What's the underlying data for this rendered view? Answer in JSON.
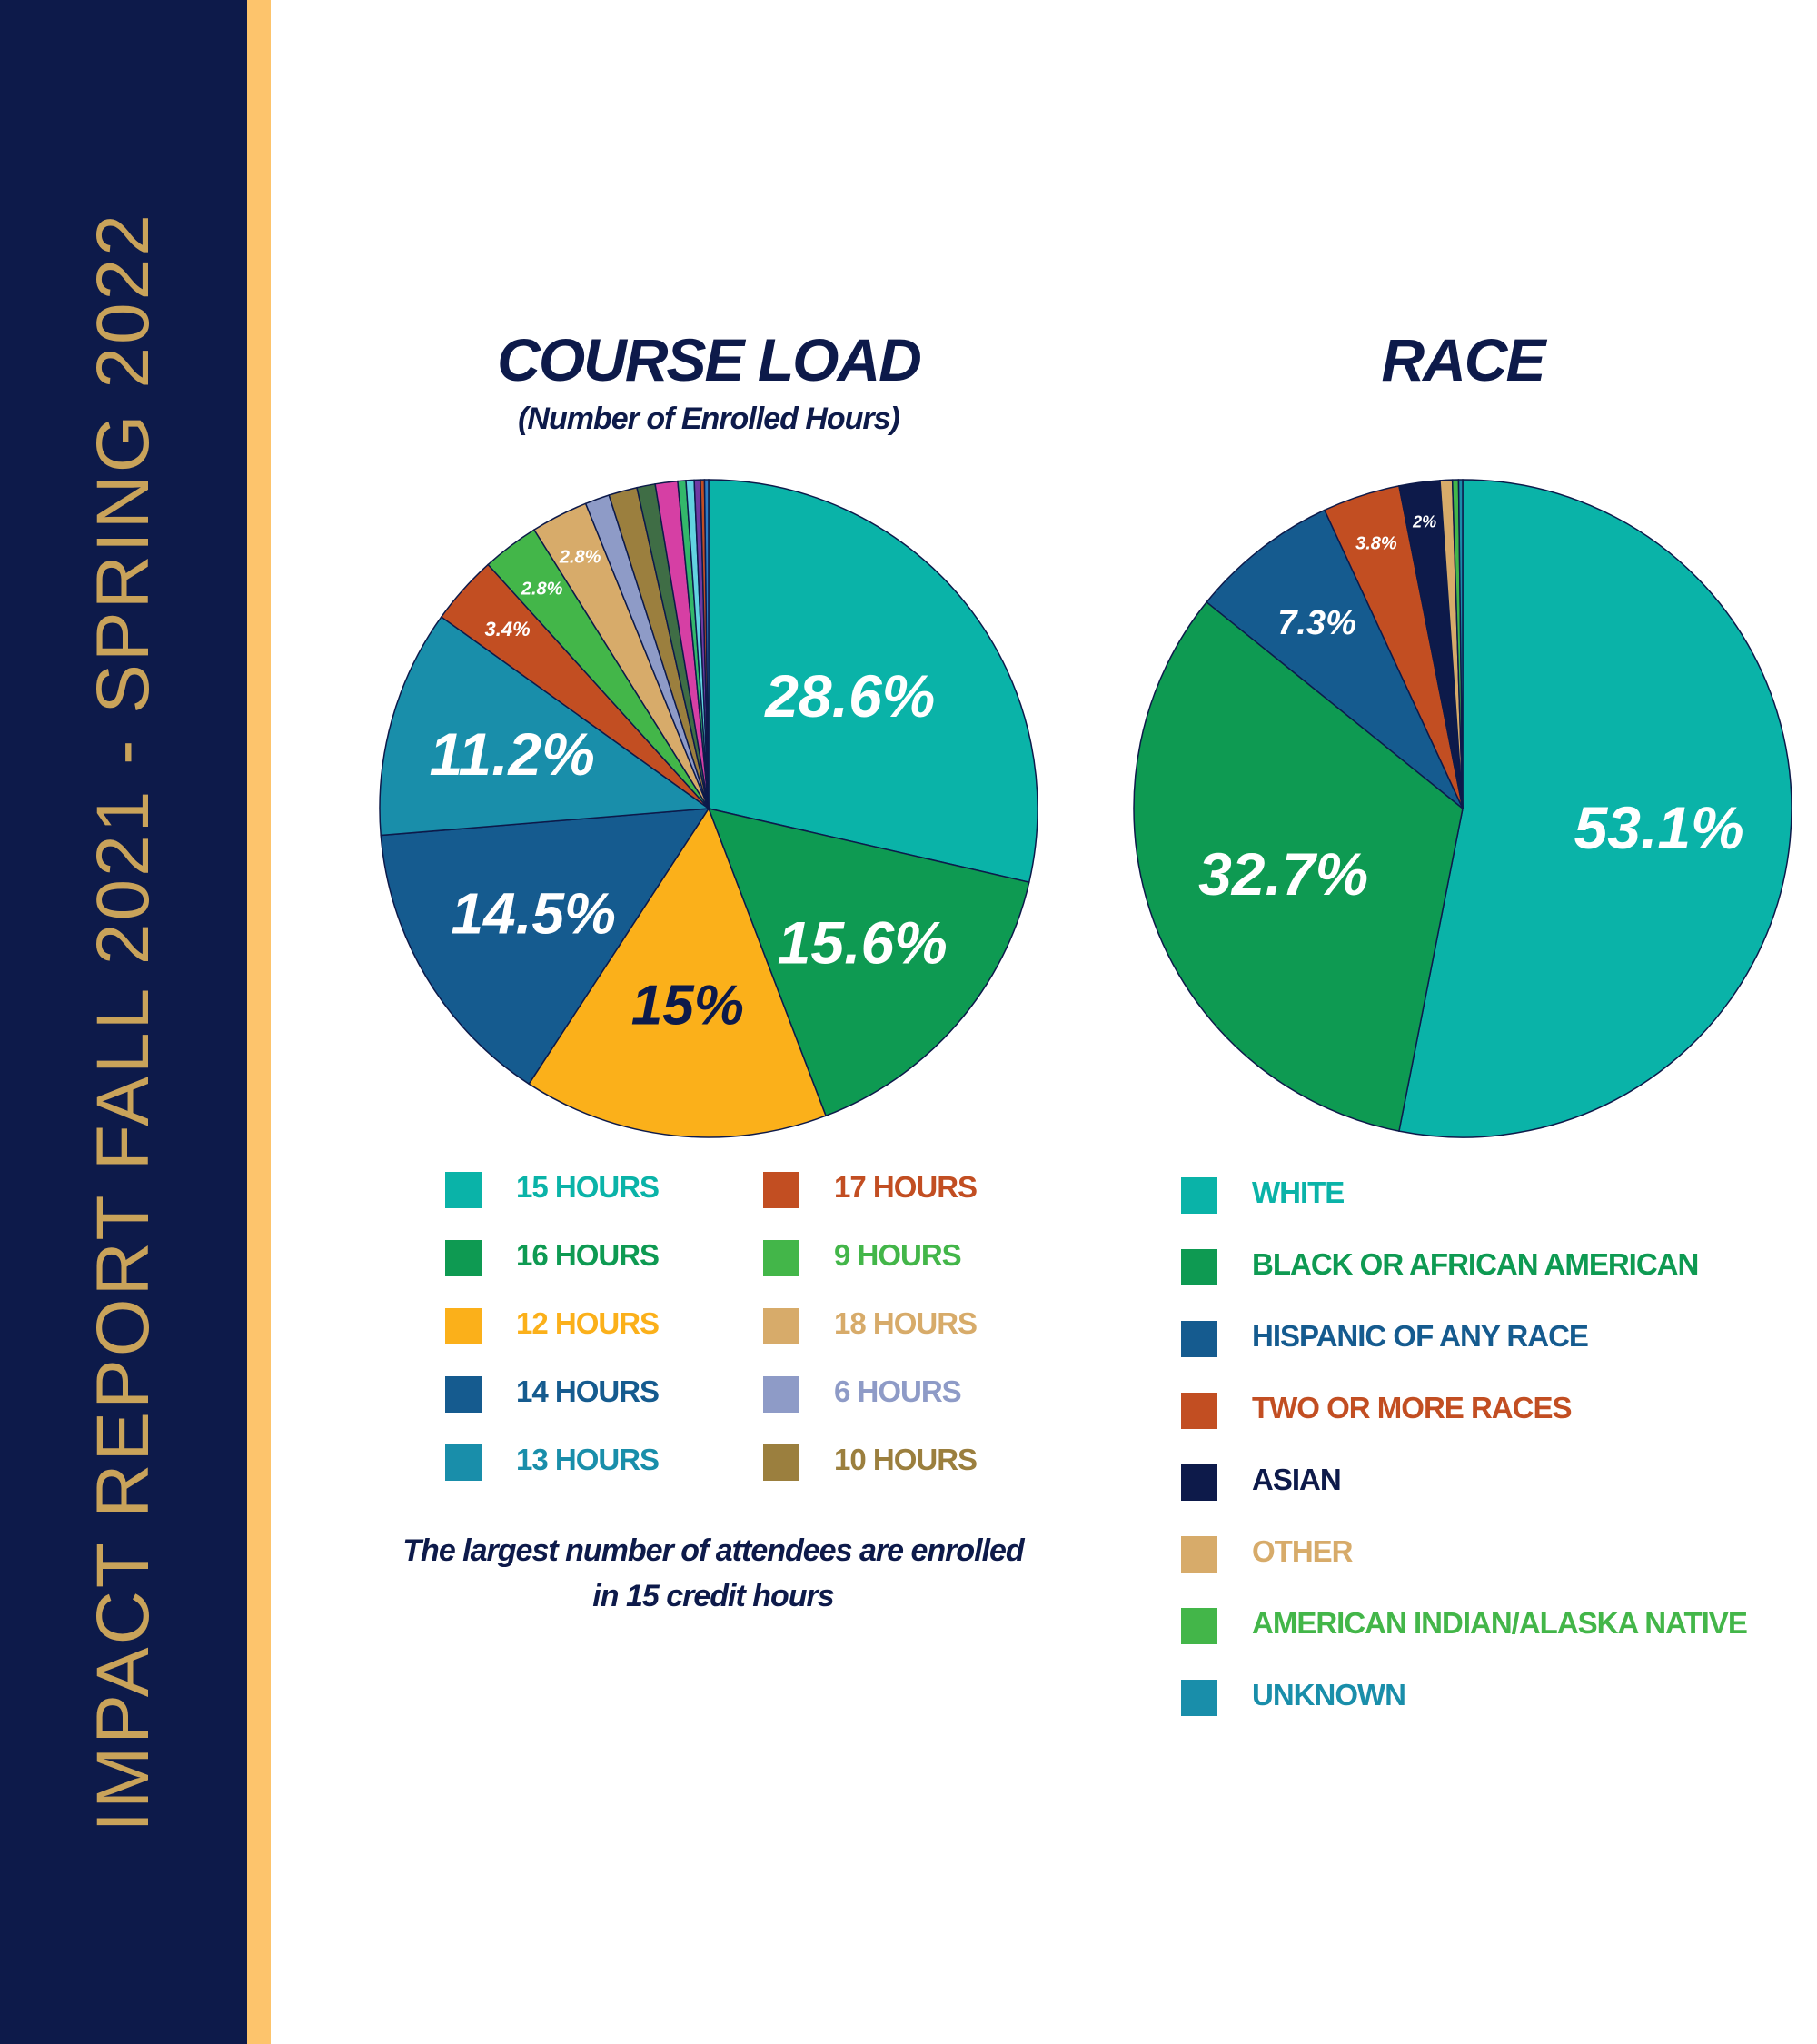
{
  "sidebar": {
    "title": "IMPACT REPORT FALL 2021 - SPRING 2022"
  },
  "colors": {
    "sidebar": "#0d1a4a",
    "stripe": "#fdc46c",
    "sidebar_text": "#c9a35a",
    "title": "#0d1a4a"
  },
  "chart_data": [
    {
      "type": "pie",
      "title": "COURSE LOAD",
      "subtitle": "(Number of Enrolled Hours)",
      "slices": [
        {
          "label": "15 HOURS",
          "value": 28.6,
          "display": "28.6%",
          "color": "#0ab3a8"
        },
        {
          "label": "16 HOURS",
          "value": 15.6,
          "display": "15.6%",
          "color": "#0e9a52"
        },
        {
          "label": "12 HOURS",
          "value": 15.0,
          "display": "15%",
          "color": "#fbb01a"
        },
        {
          "label": "14 HOURS",
          "value": 14.5,
          "display": "14.5%",
          "color": "#155b8f"
        },
        {
          "label": "13 HOURS",
          "value": 11.2,
          "display": "11.2%",
          "color": "#198eaa"
        },
        {
          "label": "17 HOURS",
          "value": 3.4,
          "display": "3.4%",
          "color": "#c24e22"
        },
        {
          "label": "9 HOURS",
          "value": 2.8,
          "display": "2.8%",
          "color": "#43b649"
        },
        {
          "label": "18 HOURS",
          "value": 2.8,
          "display": "2.8%",
          "color": "#d7ab6a"
        },
        {
          "label": "6 HOURS",
          "value": 1.2,
          "display": "",
          "color": "#8e9bc7"
        },
        {
          "label": "10 HOURS",
          "value": 1.4,
          "display": "",
          "color": "#9b7f3e"
        },
        {
          "label": "",
          "value": 0.9,
          "display": "",
          "color": "#3f6d45"
        },
        {
          "label": "",
          "value": 1.1,
          "display": "",
          "color": "#d63fa4"
        },
        {
          "label": "",
          "value": 0.4,
          "display": "",
          "color": "#33b86a"
        },
        {
          "label": "",
          "value": 0.4,
          "display": "",
          "color": "#62d3e0"
        },
        {
          "label": "",
          "value": 0.3,
          "display": "",
          "color": "#6f3aa3"
        },
        {
          "label": "",
          "value": 0.2,
          "display": "",
          "color": "#c24e22"
        },
        {
          "label": "",
          "value": 0.2,
          "display": "",
          "color": "#2e7cc4"
        }
      ],
      "legend": [
        {
          "label": "15 HOURS",
          "color": "#0ab3a8"
        },
        {
          "label": "16 HOURS",
          "color": "#0e9a52"
        },
        {
          "label": "12 HOURS",
          "color": "#fbb01a"
        },
        {
          "label": "14 HOURS",
          "color": "#155b8f"
        },
        {
          "label": "13 HOURS",
          "color": "#198eaa"
        },
        {
          "label": "17 HOURS",
          "color": "#c24e22"
        },
        {
          "label": "9 HOURS",
          "color": "#43b649"
        },
        {
          "label": "18 HOURS",
          "color": "#d7ab6a"
        },
        {
          "label": "6 HOURS",
          "color": "#8e9bc7"
        },
        {
          "label": "10 HOURS",
          "color": "#9b7f3e"
        }
      ],
      "note": "The largest number of attendees are enrolled in 15 credit hours"
    },
    {
      "type": "pie",
      "title": "RACE",
      "slices": [
        {
          "label": "WHITE",
          "value": 53.1,
          "display": "53.1%",
          "color": "#0ab3a8"
        },
        {
          "label": "BLACK OR AFRICAN AMERICAN",
          "value": 32.7,
          "display": "32.7%",
          "color": "#0e9a52"
        },
        {
          "label": "HISPANIC OF ANY RACE",
          "value": 7.3,
          "display": "7.3%",
          "color": "#155b8f"
        },
        {
          "label": "TWO OR MORE RACES",
          "value": 3.8,
          "display": "3.8%",
          "color": "#c24e22"
        },
        {
          "label": "ASIAN",
          "value": 2.0,
          "display": "2%",
          "color": "#0d1a4a"
        },
        {
          "label": "OTHER",
          "value": 0.6,
          "display": "",
          "color": "#d7ab6a"
        },
        {
          "label": "AMERICAN INDIAN/ALASKA NATIVE",
          "value": 0.3,
          "display": "",
          "color": "#43b649"
        },
        {
          "label": "UNKNOWN",
          "value": 0.2,
          "display": "",
          "color": "#198eaa"
        }
      ],
      "legend": [
        {
          "label": "WHITE",
          "color": "#0ab3a8"
        },
        {
          "label": "BLACK OR AFRICAN AMERICAN",
          "color": "#0e9a52"
        },
        {
          "label": "HISPANIC OF ANY RACE",
          "color": "#155b8f"
        },
        {
          "label": "TWO OR MORE RACES",
          "color": "#c24e22"
        },
        {
          "label": "ASIAN",
          "color": "#0d1a4a"
        },
        {
          "label": "OTHER",
          "color": "#d7ab6a"
        },
        {
          "label": "AMERICAN INDIAN/ALASKA NATIVE",
          "color": "#43b649"
        },
        {
          "label": "UNKNOWN",
          "color": "#198eaa"
        }
      ]
    }
  ]
}
